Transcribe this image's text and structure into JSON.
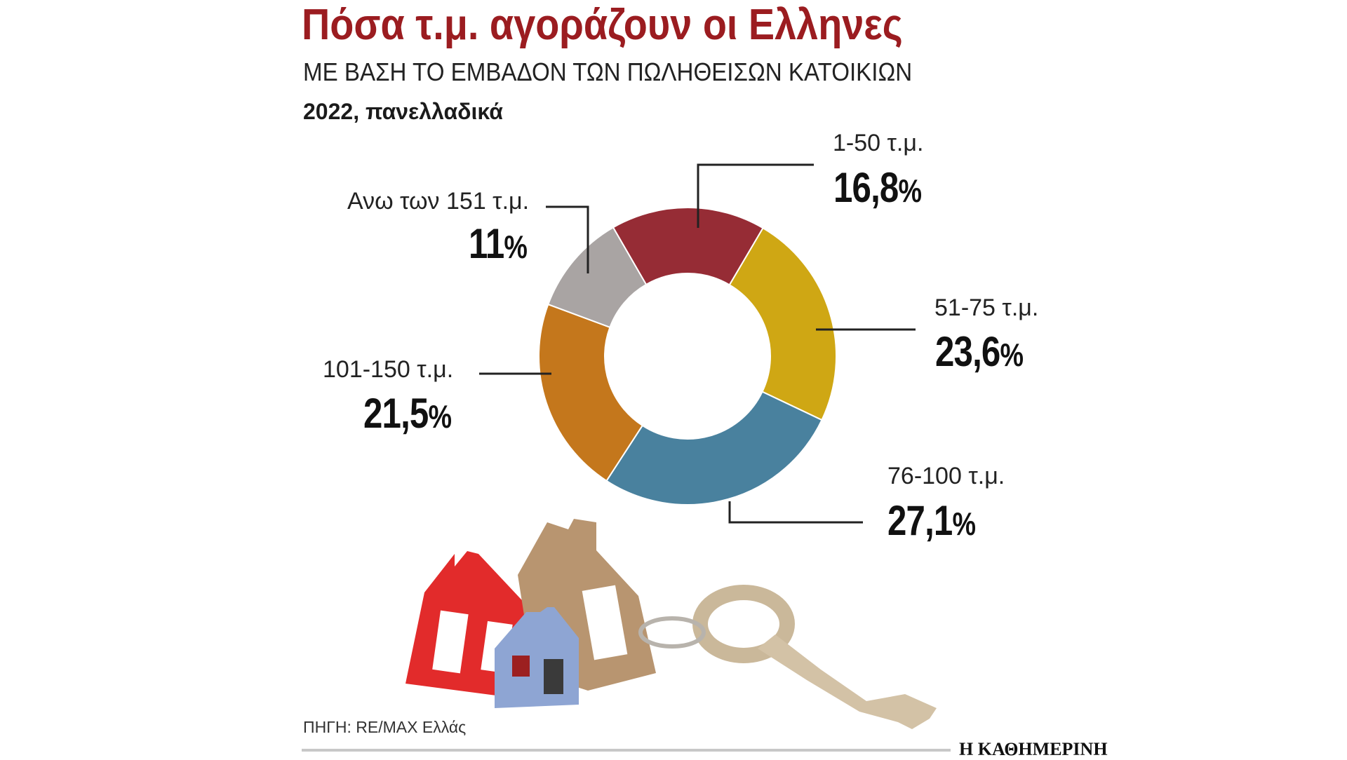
{
  "header": {
    "title": "Πόσα τ.μ. αγοράζουν οι Ελληνες",
    "subtitle": "ΜΕ ΒΑΣΗ ΤΟ ΕΜΒΑΔΟΝ ΤΩΝ ΠΩΛΗΘΕΙΣΩΝ ΚΑΤΟΙΚΙΩΝ",
    "period": "2022, πανελλαδικά"
  },
  "chart_data": {
    "type": "pie",
    "categories": [
      "1-50 τ.μ.",
      "51-75 τ.μ.",
      "76-100 τ.μ.",
      "101-150 τ.μ.",
      "Ανω των 151 τ.μ."
    ],
    "values": [
      16.8,
      23.6,
      27.1,
      21.5,
      11
    ],
    "value_labels": [
      "16,8",
      "23,6",
      "27,1",
      "21,5",
      "11"
    ],
    "unit": "%",
    "colors": [
      "#962c35",
      "#cfa714",
      "#49819e",
      "#c4771c",
      "#a9a4a3"
    ]
  },
  "footer": {
    "source": "ΠΗΓΗ: RE/MAX Ελλάς",
    "brand": "Η ΚΑΘΗΜΕΡΙΝΗ"
  }
}
